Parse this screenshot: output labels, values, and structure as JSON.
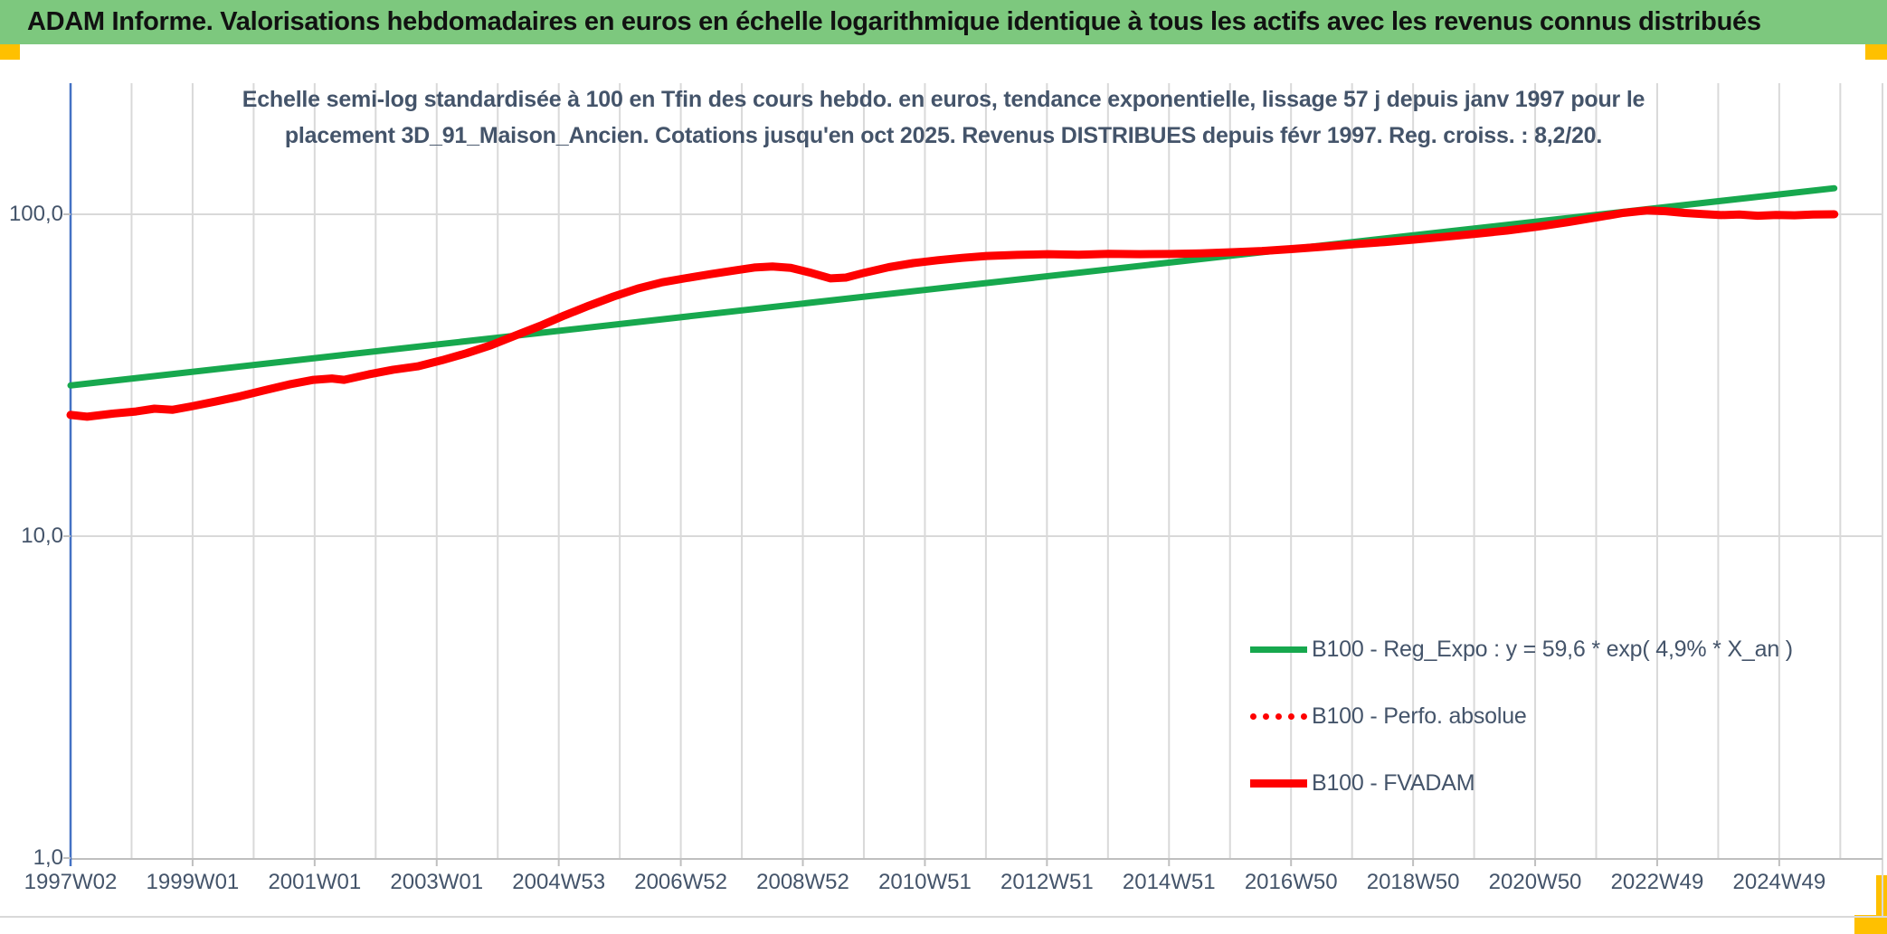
{
  "header": {
    "title": "ADAM Informe. Valorisations hebdomadaires en euros en échelle logarithmique identique à tous les actifs avec les revenus connus distribués"
  },
  "chart": {
    "title_line1": "Echelle semi-log standardisée à 100 en Tfin des cours hebdo. en euros, tendance exponentielle, lissage 57 j depuis janv 1997 pour le",
    "title_line2": "placement 3D_91_Maison_Ancien. Cotations jusqu'en oct 2025. Revenus DISTRIBUES depuis févr 1997. Reg. croiss. : 8,2/20."
  },
  "chart_data": {
    "type": "line",
    "title": "Echelle semi-log standardisée à 100 en Tfin des cours hebdo. en euros, tendance exponentielle, lissage 57 j depuis janv 1997 pour le placement 3D_91_Maison_Ancien. Cotations jusqu'en oct 2025. Revenus DISTRIBUES depuis févr 1997. Reg. croiss. : 8,2/20.",
    "x_axis": {
      "start_year": 1997.03,
      "end_year": 2025.85,
      "gridline_step_years": 1,
      "gridline_count": 30,
      "tick_labels": [
        "1997W02",
        "1999W01",
        "2001W01",
        "2003W01",
        "2004W53",
        "2006W52",
        "2008W52",
        "2010W51",
        "2012W51",
        "2014W51",
        "2016W50",
        "2018W50",
        "2020W50",
        "2022W49",
        "2024W49"
      ],
      "label_every_n_gridlines": 2
    },
    "y_axis": {
      "scale": "log",
      "tick_labels": [
        "100,0",
        "10,0",
        "1,0"
      ],
      "tick_values": [
        100,
        10,
        1
      ],
      "ylim": [
        1,
        200
      ]
    },
    "legend": [
      {
        "label": "B100 - Reg_Expo : y = 59,6 * exp( 4,9% *  X_an )",
        "color": "#17a84e",
        "style": "solid",
        "thickness": 7
      },
      {
        "label": "B100 - Perfo. absolue",
        "color": "#fe0000",
        "style": "dotted",
        "thickness": 7
      },
      {
        "label": "B100 - FVADAM",
        "color": "#fe0000",
        "style": "solid",
        "thickness": 9
      }
    ],
    "series": [
      {
        "name": "B100 - Reg_Expo",
        "color": "#17a84e",
        "style": "solid",
        "width": 7,
        "points": [
          [
            1997.03,
            29.4
          ],
          [
            2025.85,
            120.5
          ]
        ]
      },
      {
        "name": "B100 - FVADAM",
        "color": "#fe0000",
        "style": "solid",
        "width": 9,
        "points": [
          [
            1997.03,
            23.8
          ],
          [
            1997.3,
            23.5
          ],
          [
            1997.7,
            24.0
          ],
          [
            1998.1,
            24.4
          ],
          [
            1998.4,
            24.9
          ],
          [
            1998.7,
            24.7
          ],
          [
            1999.0,
            25.3
          ],
          [
            1999.4,
            26.2
          ],
          [
            1999.8,
            27.2
          ],
          [
            2000.2,
            28.4
          ],
          [
            2000.6,
            29.6
          ],
          [
            2001.0,
            30.6
          ],
          [
            2001.3,
            30.9
          ],
          [
            2001.5,
            30.6
          ],
          [
            2001.9,
            31.8
          ],
          [
            2002.3,
            32.9
          ],
          [
            2002.7,
            33.7
          ],
          [
            2003.1,
            35.2
          ],
          [
            2003.5,
            37.0
          ],
          [
            2003.9,
            39.2
          ],
          [
            2004.3,
            42.0
          ],
          [
            2004.7,
            45.0
          ],
          [
            2005.1,
            48.5
          ],
          [
            2005.5,
            52.0
          ],
          [
            2005.9,
            55.5
          ],
          [
            2006.3,
            58.8
          ],
          [
            2006.7,
            61.5
          ],
          [
            2007.1,
            63.4
          ],
          [
            2007.5,
            65.2
          ],
          [
            2007.9,
            67.0
          ],
          [
            2008.2,
            68.3
          ],
          [
            2008.5,
            68.8
          ],
          [
            2008.8,
            68.2
          ],
          [
            2009.1,
            66.0
          ],
          [
            2009.45,
            63.2
          ],
          [
            2009.7,
            63.6
          ],
          [
            2010.0,
            65.8
          ],
          [
            2010.4,
            68.5
          ],
          [
            2010.8,
            70.5
          ],
          [
            2011.2,
            72.0
          ],
          [
            2011.6,
            73.2
          ],
          [
            2012.0,
            74.2
          ],
          [
            2012.5,
            74.8
          ],
          [
            2013.0,
            75.2
          ],
          [
            2013.5,
            74.9
          ],
          [
            2014.0,
            75.4
          ],
          [
            2014.5,
            75.2
          ],
          [
            2015.0,
            75.3
          ],
          [
            2015.5,
            75.6
          ],
          [
            2016.0,
            76.2
          ],
          [
            2016.5,
            76.9
          ],
          [
            2017.0,
            78.0
          ],
          [
            2017.5,
            79.3
          ],
          [
            2018.0,
            80.7
          ],
          [
            2018.5,
            82.0
          ],
          [
            2019.0,
            83.5
          ],
          [
            2019.5,
            85.2
          ],
          [
            2020.0,
            87.0
          ],
          [
            2020.5,
            89.0
          ],
          [
            2021.0,
            91.5
          ],
          [
            2021.5,
            94.5
          ],
          [
            2022.0,
            98.0
          ],
          [
            2022.4,
            101.0
          ],
          [
            2022.8,
            102.8
          ],
          [
            2023.1,
            102.2
          ],
          [
            2023.4,
            101.0
          ],
          [
            2023.7,
            100.2
          ],
          [
            2024.0,
            99.4
          ],
          [
            2024.3,
            99.8
          ],
          [
            2024.6,
            99.0
          ],
          [
            2024.9,
            99.5
          ],
          [
            2025.2,
            99.3
          ],
          [
            2025.5,
            99.8
          ],
          [
            2025.85,
            100.0
          ]
        ]
      },
      {
        "name": "B100 - Perfo. absolue",
        "color": "#fe0000",
        "style": "dotted",
        "width": 5.5,
        "coincides_with": "B100 - FVADAM"
      }
    ]
  },
  "colors": {
    "header_green": "#7dc87e",
    "accent_yellow": "#ffc000",
    "text_dark": "#44546a",
    "grid": "#d9d9d9",
    "axis_blue": "#4472c4",
    "axis_gray": "#bfbfbf",
    "regression_green": "#17a84e",
    "series_red": "#fe0000"
  }
}
